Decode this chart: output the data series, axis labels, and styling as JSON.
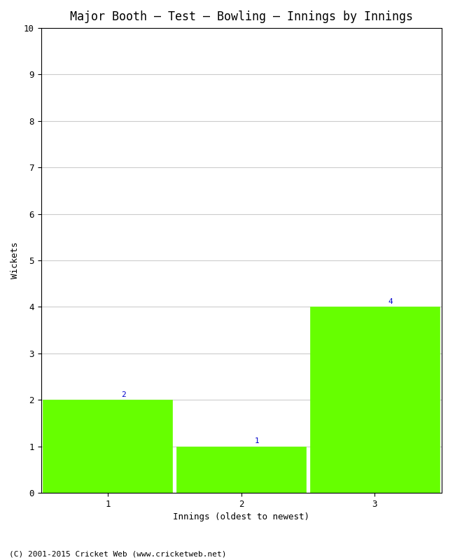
{
  "title": "Major Booth – Test – Bowling – Innings by Innings",
  "xlabel": "Innings (oldest to newest)",
  "ylabel": "Wickets",
  "categories": [
    1,
    2,
    3
  ],
  "values": [
    2,
    1,
    4
  ],
  "bar_color": "#66ff00",
  "bar_edge_color": "#66ff00",
  "annotation_color": "#0000cc",
  "ylim": [
    0,
    10
  ],
  "yticks": [
    0,
    1,
    2,
    3,
    4,
    5,
    6,
    7,
    8,
    9,
    10
  ],
  "xticks": [
    1,
    2,
    3
  ],
  "background_color": "#ffffff",
  "grid_color": "#cccccc",
  "footer": "(C) 2001-2015 Cricket Web (www.cricketweb.net)",
  "title_fontsize": 12,
  "label_fontsize": 9,
  "tick_fontsize": 9,
  "annotation_fontsize": 8,
  "footer_fontsize": 8,
  "bar_width": 0.97,
  "xlim": [
    0.5,
    3.5
  ]
}
